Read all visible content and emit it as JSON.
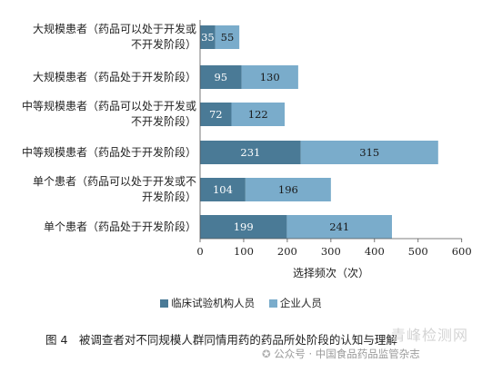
{
  "chart_data": {
    "type": "bar",
    "orientation": "horizontal",
    "stacked": true,
    "categories": [
      "大规模患者（药品可以处于开发或不开发阶段）",
      "大规模患者（药品处于开发阶段）",
      "中等规模患者（药品可以处于开发或不开发阶段）",
      "中等规模患者（药品处于开发阶段）",
      "单个患者（药品可以处于开发或不开发阶段）",
      "单个患者（药品处于开发阶段）"
    ],
    "series": [
      {
        "name": "临床试验机构人员",
        "color": "#4a7a96",
        "values": [
          35,
          95,
          72,
          231,
          104,
          199
        ]
      },
      {
        "name": "企业人员",
        "color": "#7aaccb",
        "values": [
          55,
          130,
          122,
          315,
          196,
          241
        ]
      }
    ],
    "xlabel": "选择频次（次）",
    "xlim": [
      0,
      600
    ],
    "xticks": [
      0,
      100,
      200,
      300,
      400,
      500,
      600
    ],
    "legend_position": "bottom",
    "grid": false
  },
  "labels": {
    "cat0": [
      "大规模患者（药品可以处于开发或",
      "不开发阶段）"
    ],
    "cat1": [
      "大规模患者（药品处于开发阶段）"
    ],
    "cat2": [
      "中等规模患者（药品可以处于开发或",
      "不开发阶段）"
    ],
    "cat3": [
      "中等规模患者（药品处于开发阶段）"
    ],
    "cat4": [
      "单个患者（药品可以处于开发或不",
      "开发阶段）"
    ],
    "cat5": [
      "单个患者（药品处于开发阶段）"
    ]
  },
  "caption": "图 4　被调查者对不同规模人群同情用药的药品所处阶段的认知与理解",
  "watermark": {
    "brand": "青峰检测网",
    "account": "公众号 · 中国食品药品监管杂志"
  }
}
